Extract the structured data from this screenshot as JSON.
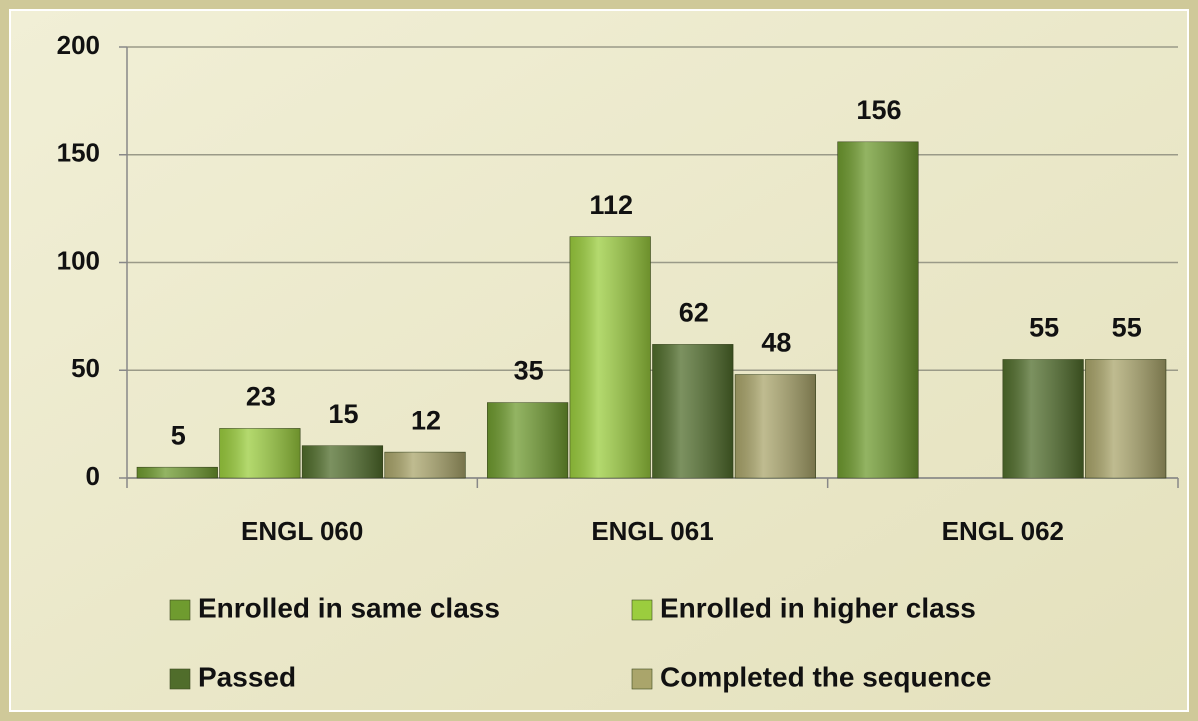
{
  "chart_data": {
    "type": "bar",
    "categories": [
      "ENGL 060",
      "ENGL 061",
      "ENGL 062"
    ],
    "series": [
      {
        "name": "Enrolled in same class",
        "color": "#6f9b2f",
        "values": [
          5,
          35,
          156
        ]
      },
      {
        "name": "Enrolled in higher class",
        "color": "#9bcd3e",
        "values": [
          23,
          112,
          null
        ]
      },
      {
        "name": "Passed",
        "color": "#506d2b",
        "values": [
          15,
          62,
          55
        ]
      },
      {
        "name": "Completed the sequence",
        "color": "#aaa56b",
        "values": [
          12,
          48,
          55
        ]
      }
    ],
    "ylim": [
      0,
      200
    ],
    "yticks": [
      0,
      50,
      100,
      150,
      200
    ],
    "grid": true,
    "legend": "bottom"
  }
}
